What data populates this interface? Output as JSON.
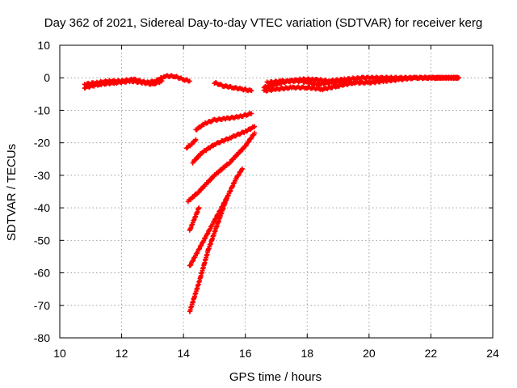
{
  "chart_data": {
    "type": "scatter",
    "title": "Day 362 of 2021, Sidereal Day-to-day VTEC variation (SDTVAR) for receiver kerg",
    "xlabel": "GPS time / hours",
    "ylabel": "SDTVAR / TECUs",
    "xlim": [
      10,
      24
    ],
    "ylim": [
      -80,
      10
    ],
    "xticks": [
      10,
      12,
      14,
      16,
      18,
      20,
      22,
      24
    ],
    "yticks": [
      10,
      0,
      -10,
      -20,
      -30,
      -40,
      -50,
      -60,
      -70,
      -80
    ],
    "xtick_labels": [
      "10",
      "12",
      "14",
      "16",
      "18",
      "20",
      "22",
      "24"
    ],
    "ytick_labels": [
      "10",
      "0",
      "-10",
      "-20",
      "-30",
      "-40",
      "-50",
      "-60",
      "-70",
      "-80"
    ],
    "grid": true,
    "marker_color": "#ff0000",
    "series": [
      {
        "x": [
          10.8,
          11.2,
          11.6,
          12.0,
          12.4,
          12.8,
          13.1,
          13.4,
          13.7,
          14.0,
          14.2
        ],
        "y": [
          -2,
          -1.5,
          -1,
          -1,
          -0.5,
          -1.5,
          -1,
          0.5,
          0.5,
          -0.5,
          -1
        ]
      },
      {
        "x": [
          10.8,
          11.3,
          11.8,
          12.3,
          12.7,
          13.0,
          13.3
        ],
        "y": [
          -3,
          -2,
          -1.5,
          -1,
          -1.5,
          -2,
          -1
        ]
      },
      {
        "x": [
          15.0,
          15.3,
          15.6,
          15.9,
          16.2
        ],
        "y": [
          -1.5,
          -2.5,
          -3,
          -3.5,
          -4
        ]
      },
      {
        "x": [
          16.6,
          17.0,
          17.4,
          17.8,
          18.2,
          18.7,
          19.2,
          19.8,
          20.4,
          21.0,
          21.6,
          22.2,
          22.9
        ],
        "y": [
          -3,
          -2,
          -1,
          -0.5,
          -0.5,
          -1,
          -0.5,
          0,
          0,
          0,
          0,
          0,
          0
        ]
      },
      {
        "x": [
          16.6,
          17.0,
          17.5,
          18.0,
          18.5,
          19.0,
          19.5,
          20.0,
          20.5,
          21.0,
          21.5,
          22.0,
          22.9
        ],
        "y": [
          -4,
          -3.5,
          -3,
          -3,
          -3.5,
          -2.5,
          -1.5,
          -1.5,
          -1,
          -0.5,
          0,
          0,
          0
        ]
      },
      {
        "x": [
          16.7,
          17.2,
          17.8,
          18.3,
          18.8,
          19.3
        ],
        "y": [
          -1.5,
          -1,
          -1,
          -2,
          -1.5,
          -1
        ]
      },
      {
        "x": [
          14.4,
          14.7,
          15.0,
          15.4,
          15.8,
          16.2
        ],
        "y": [
          -16,
          -14,
          -13,
          -12.5,
          -12,
          -11
        ]
      },
      {
        "x": [
          14.1,
          14.25,
          14.4
        ],
        "y": [
          -21.5,
          -20.5,
          -19
        ]
      },
      {
        "x": [
          14.3,
          14.6,
          15.0,
          15.5,
          16.0,
          16.3
        ],
        "y": [
          -26,
          -23,
          -20.5,
          -18.5,
          -16.5,
          -15
        ]
      },
      {
        "x": [
          14.15,
          14.5,
          15.0,
          15.5,
          16.0,
          16.3
        ],
        "y": [
          -38,
          -35,
          -30,
          -26,
          -21,
          -17
        ]
      },
      {
        "x": [
          14.2,
          14.35,
          14.5
        ],
        "y": [
          -47,
          -43.5,
          -40
        ]
      },
      {
        "x": [
          14.2,
          14.6,
          15.0,
          15.4,
          15.7,
          15.9
        ],
        "y": [
          -58,
          -51,
          -44,
          -37,
          -31,
          -28
        ]
      },
      {
        "x": [
          14.2,
          14.5,
          14.8,
          15.1,
          15.4
        ],
        "y": [
          -72,
          -63,
          -53,
          -45,
          -37
        ]
      }
    ]
  }
}
